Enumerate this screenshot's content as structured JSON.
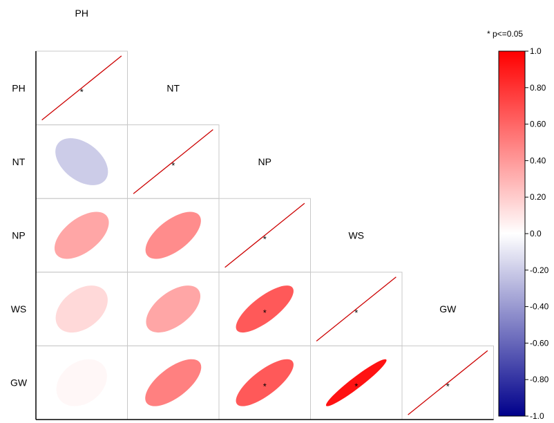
{
  "chart_data": {
    "type": "heatmap",
    "subtype": "correlation-ellipse-lower-triangle",
    "variables": [
      "PH",
      "NT",
      "NP",
      "WS",
      "GW"
    ],
    "matrix": [
      [
        1.0,
        -0.2,
        0.35,
        0.15,
        0.03
      ],
      [
        -0.2,
        1.0,
        0.45,
        0.35,
        0.5
      ],
      [
        0.35,
        0.45,
        1.0,
        0.65,
        0.65
      ],
      [
        0.15,
        0.35,
        0.65,
        1.0,
        0.93
      ],
      [
        0.03,
        0.5,
        0.65,
        0.93,
        1.0
      ]
    ],
    "significant": [
      [
        0,
        0
      ],
      [
        1,
        1
      ],
      [
        2,
        2
      ],
      [
        3,
        3
      ],
      [
        4,
        4
      ],
      [
        3,
        2
      ],
      [
        4,
        2
      ],
      [
        4,
        3
      ]
    ],
    "significance_marker": "*",
    "legend_note": "* p<=0.05",
    "colorbar": {
      "range": [
        -1.0,
        1.0
      ],
      "ticks": [
        "1.0",
        "0.80",
        "0.60",
        "0.40",
        "0.20",
        "0.0",
        "-0.20",
        "-0.40",
        "-0.60",
        "-0.80",
        "-1.0"
      ],
      "tick_values": [
        1.0,
        0.8,
        0.6,
        0.4,
        0.2,
        0.0,
        -0.2,
        -0.4,
        -0.6,
        -0.8,
        -1.0
      ],
      "colors": {
        "negative": "#00008b",
        "mid": "#ffffff",
        "positive": "#ff0000"
      },
      "placement": "right"
    },
    "colors": {
      "diagonal_line": "#cc0000",
      "grid": "#c8c8c8",
      "axis": "#000000"
    }
  }
}
